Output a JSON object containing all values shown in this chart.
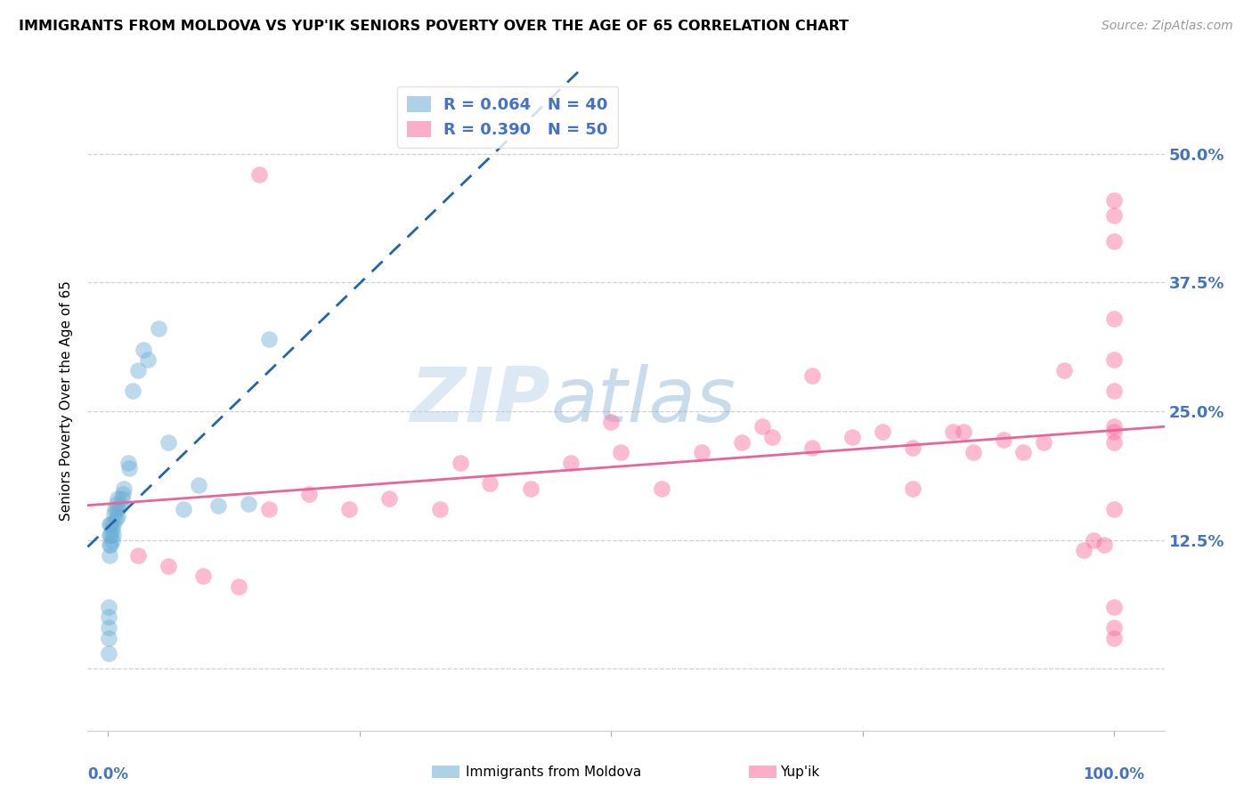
{
  "title": "IMMIGRANTS FROM MOLDOVA VS YUP'IK SENIORS POVERTY OVER THE AGE OF 65 CORRELATION CHART",
  "source": "Source: ZipAtlas.com",
  "ylabel": "Seniors Poverty Over the Age of 65",
  "ytick_labels": [
    "",
    "12.5%",
    "25.0%",
    "37.5%",
    "50.0%"
  ],
  "ytick_values": [
    0.0,
    0.125,
    0.25,
    0.375,
    0.5
  ],
  "xlim": [
    -0.02,
    1.05
  ],
  "ylim": [
    -0.06,
    0.58
  ],
  "legend_color1": "#6baed6",
  "legend_color2": "#fb6a9a",
  "moldova_color": "#6baed6",
  "yupik_color": "#fb6a9a",
  "moldova_trend_color": "#2166ac",
  "yupik_trend_color": "#e8649a",
  "background_color": "#ffffff",
  "grid_color": "#d0d0d0",
  "tick_label_color": "#4472c4",
  "title_fontsize": 11.5,
  "source_fontsize": 10,
  "moldova_x": [
    0.001,
    0.001,
    0.001,
    0.001,
    0.001,
    0.002,
    0.002,
    0.002,
    0.002,
    0.003,
    0.003,
    0.003,
    0.004,
    0.004,
    0.005,
    0.005,
    0.006,
    0.007,
    0.008,
    0.009,
    0.01,
    0.01,
    0.01,
    0.012,
    0.014,
    0.015,
    0.016,
    0.02,
    0.021,
    0.025,
    0.03,
    0.035,
    0.04,
    0.05,
    0.06,
    0.075,
    0.09,
    0.11,
    0.14,
    0.16
  ],
  "moldova_y": [
    0.06,
    0.05,
    0.04,
    0.03,
    0.015,
    0.14,
    0.13,
    0.12,
    0.11,
    0.14,
    0.13,
    0.12,
    0.135,
    0.125,
    0.14,
    0.13,
    0.15,
    0.155,
    0.145,
    0.16,
    0.165,
    0.155,
    0.148,
    0.158,
    0.165,
    0.17,
    0.175,
    0.2,
    0.195,
    0.27,
    0.29,
    0.31,
    0.3,
    0.33,
    0.22,
    0.155,
    0.178,
    0.158,
    0.16,
    0.32
  ],
  "yupik_x": [
    0.03,
    0.06,
    0.095,
    0.13,
    0.16,
    0.2,
    0.24,
    0.28,
    0.33,
    0.38,
    0.42,
    0.46,
    0.51,
    0.55,
    0.59,
    0.63,
    0.66,
    0.7,
    0.74,
    0.77,
    0.8,
    0.84,
    0.86,
    0.89,
    0.91,
    0.93,
    0.95,
    0.97,
    0.98,
    0.99,
    1.0,
    1.0,
    1.0,
    1.0,
    1.0,
    1.0,
    1.0,
    1.0,
    1.0,
    1.0,
    1.0,
    1.0,
    1.0,
    0.7,
    0.65,
    0.8,
    0.85,
    0.5,
    0.35,
    0.15
  ],
  "yupik_y": [
    0.11,
    0.1,
    0.09,
    0.08,
    0.155,
    0.17,
    0.155,
    0.165,
    0.155,
    0.18,
    0.175,
    0.2,
    0.21,
    0.175,
    0.21,
    0.22,
    0.225,
    0.215,
    0.225,
    0.23,
    0.175,
    0.23,
    0.21,
    0.222,
    0.21,
    0.22,
    0.29,
    0.115,
    0.125,
    0.12,
    0.44,
    0.415,
    0.34,
    0.3,
    0.27,
    0.155,
    0.04,
    0.03,
    0.06,
    0.23,
    0.22,
    0.235,
    0.455,
    0.285,
    0.235,
    0.215,
    0.23,
    0.24,
    0.2,
    0.48
  ],
  "watermark_zip_color": "#a8c8e8",
  "watermark_atlas_color": "#7aa8d0"
}
